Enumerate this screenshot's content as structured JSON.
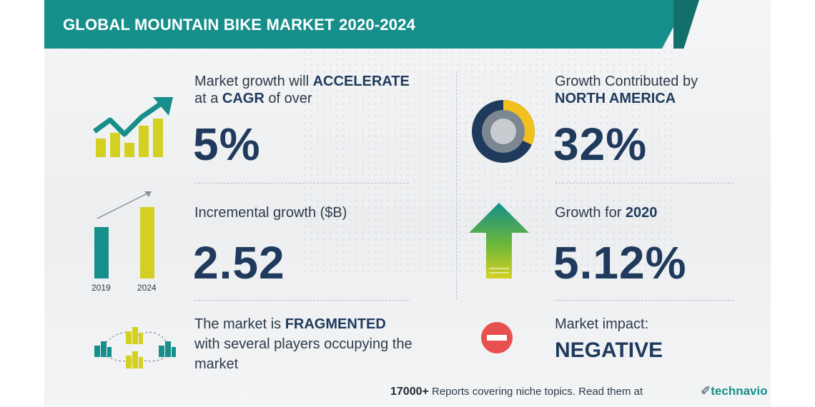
{
  "title": "GLOBAL MOUNTAIN BIKE MARKET 2020-2024",
  "left": {
    "cagr": {
      "line1_pre": "Market growth will ",
      "line1_bold": "ACCELERATE",
      "line2_pre": "at a ",
      "line2_bold": "CAGR",
      "line2_post": " of over",
      "value": "5%"
    },
    "incremental": {
      "label": "Incremental growth ($B)",
      "value": "2.52",
      "year_start": "2019",
      "year_end": "2024"
    },
    "fragmented": {
      "line1_pre": "The market is ",
      "line1_bold": "FRAGMENTED",
      "line2": "with several players occupying the",
      "line3": "market"
    }
  },
  "right": {
    "region": {
      "line1": "Growth Contributed by",
      "line2": "NORTH AMERICA",
      "value": "32%",
      "share": 0.32
    },
    "yoy": {
      "label_pre": "Growth for ",
      "label_year": "2020",
      "value": "5.12%"
    },
    "impact": {
      "label": "Market impact:",
      "value": "NEGATIVE"
    }
  },
  "footer": {
    "count": "17000+",
    "text": " Reports covering niche topics. Read them at",
    "brand": "technavio"
  },
  "colors": {
    "teal": "#168f8a",
    "navy": "#1f3a5c",
    "yellow": "#d4d021",
    "red": "#e8504f",
    "green": "#2e9f4a"
  },
  "icons": {
    "growth": "rising-bar-chart-icon",
    "incremental": "two-bar-chart-icon",
    "fragmented": "buildings-network-icon",
    "region": "donut-chart-icon",
    "yoy": "up-arrow-icon",
    "impact": "minus-circle-icon"
  }
}
